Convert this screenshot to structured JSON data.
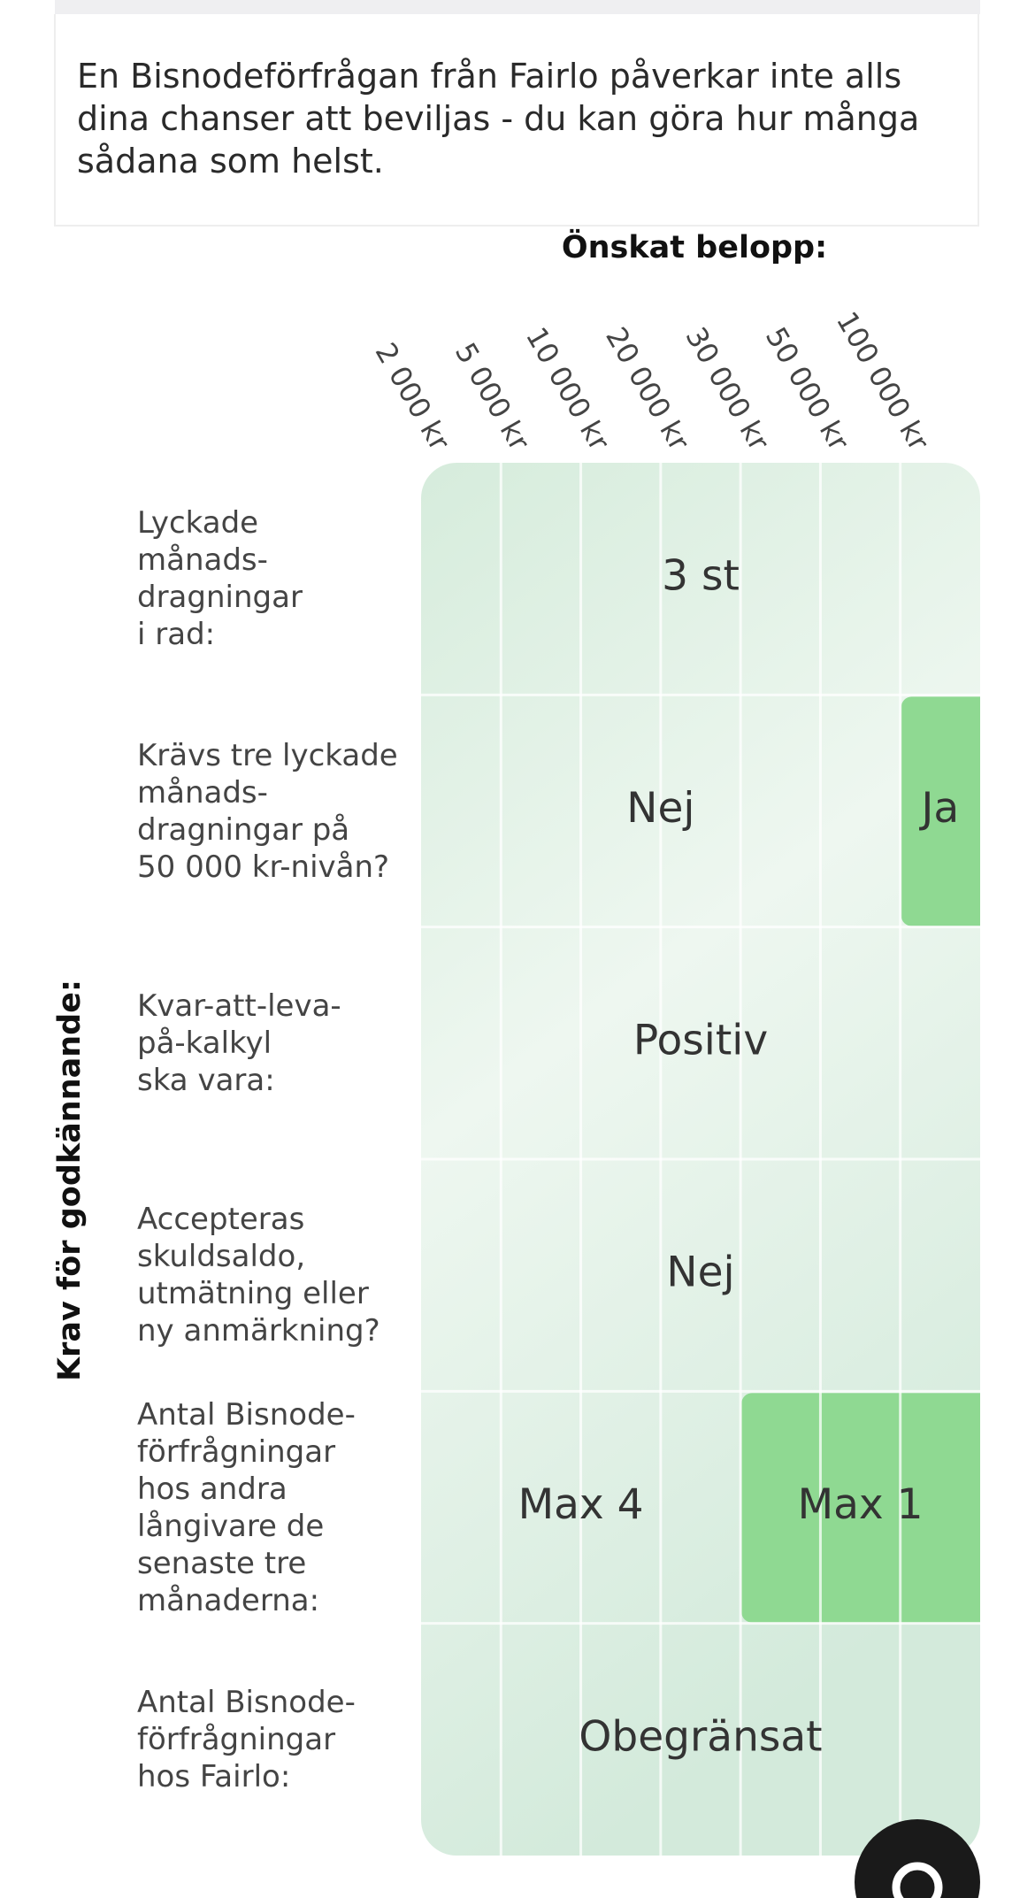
{
  "notice": "En Bisnodeförfrågan från Fairlo påverkar inte alls dina chanser att beviljas - du kan göra hur många sådana som helst.",
  "column_heading": "Önskat belopp:",
  "columns": [
    "2 000 kr",
    "5 000 kr",
    "10 000 kr",
    "20 000 kr",
    "30 000 kr",
    "50 000 kr",
    "100 000 kr"
  ],
  "row_heading": "Krav för godkännande:",
  "rows": [
    {
      "label": "Lyckade\nmånads-\ndragningar\ni rad:",
      "cells": [
        {
          "text": "3 st",
          "span": 7,
          "highlight": false
        }
      ]
    },
    {
      "label": "Krävs tre lyckade\nmånads-\ndragningar på\n50 000 kr-nivån?",
      "cells": [
        {
          "text": "Nej",
          "span": 6,
          "highlight": false
        },
        {
          "text": "Ja",
          "span": 1,
          "highlight": true
        }
      ]
    },
    {
      "label": "Kvar-att-leva-\npå-kalkyl\nska vara:",
      "cells": [
        {
          "text": "Positiv",
          "span": 7,
          "highlight": false
        }
      ]
    },
    {
      "label": "Accepteras\nskuldsaldo,\nutmätning eller\nny anmärkning?",
      "cells": [
        {
          "text": "Nej",
          "span": 7,
          "highlight": false
        }
      ]
    },
    {
      "label": "Antal Bisnode-\nförfrågningar\nhos andra\nlångivare de\nsenaste tre\nmånaderna:",
      "cells": [
        {
          "text": "Max 4",
          "span": 4,
          "highlight": false
        },
        {
          "text": "Max 1",
          "span": 3,
          "highlight": true
        }
      ]
    },
    {
      "label": "Antal Bisnode-\nförfrågningar\nhos Fairlo:",
      "cells": [
        {
          "text": "Obegränsat",
          "span": 7,
          "highlight": false
        }
      ]
    }
  ]
}
